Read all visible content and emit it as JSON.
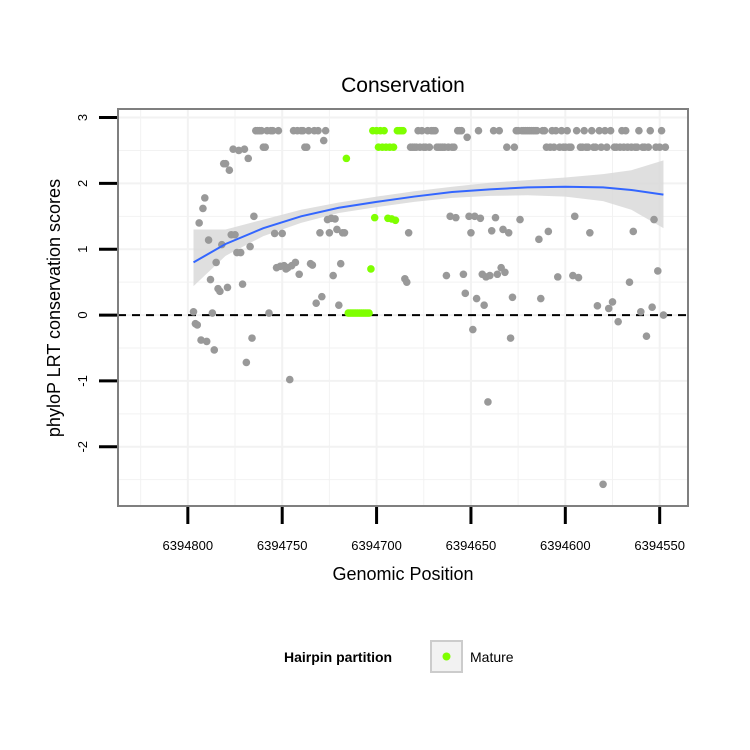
{
  "chart_data": {
    "type": "scatter",
    "title": "Conservation",
    "xlabel": "Genomic Position",
    "ylabel": "phyloP LRT conservation scores",
    "x_reversed": true,
    "xlim": [
      6394837,
      6394535
    ],
    "ylim": [
      -2.9,
      3.13
    ],
    "x_ticks": [
      6394800,
      6394750,
      6394700,
      6394650,
      6394600,
      6394550
    ],
    "y_ticks": [
      -2,
      -1,
      0,
      1,
      2,
      3
    ],
    "reference_line": {
      "y": 0,
      "style": "dashed"
    },
    "grid": true,
    "legend": {
      "title": "Hairpin partition",
      "position": "bottom",
      "entries": [
        "Mature"
      ]
    },
    "colors": {
      "other": "#999999",
      "mature": "#7fff00",
      "smooth": "#3366ff",
      "band": "#d9d9d9",
      "panel_border": "#7f7f7f"
    },
    "series": [
      {
        "name": "",
        "color": "#999999",
        "points": [
          [
            6394797,
            0.05
          ],
          [
            6394796,
            -0.13
          ],
          [
            6394795,
            -0.15
          ],
          [
            6394794,
            1.4
          ],
          [
            6394793,
            -0.38
          ],
          [
            6394792,
            1.62
          ],
          [
            6394791,
            1.78
          ],
          [
            6394790,
            -0.4
          ],
          [
            6394789,
            1.14
          ],
          [
            6394788,
            0.54
          ],
          [
            6394787,
            0.03
          ],
          [
            6394786,
            -0.53
          ],
          [
            6394785,
            0.8
          ],
          [
            6394784,
            0.4
          ],
          [
            6394783,
            0.36
          ],
          [
            6394782,
            1.07
          ],
          [
            6394781,
            2.3
          ],
          [
            6394780,
            2.3
          ],
          [
            6394779,
            0.42
          ],
          [
            6394778,
            2.2
          ],
          [
            6394777,
            1.22
          ],
          [
            6394776,
            2.52
          ],
          [
            6394775,
            1.22
          ],
          [
            6394774,
            0.95
          ],
          [
            6394773,
            2.5
          ],
          [
            6394772,
            0.95
          ],
          [
            6394771,
            0.47
          ],
          [
            6394770,
            2.52
          ],
          [
            6394769,
            -0.72
          ],
          [
            6394768,
            2.38
          ],
          [
            6394767,
            1.04
          ],
          [
            6394766,
            -0.35
          ],
          [
            6394765,
            1.5
          ],
          [
            6394764,
            2.8
          ],
          [
            6394763,
            2.8
          ],
          [
            6394762,
            2.8
          ],
          [
            6394761,
            2.8
          ],
          [
            6394760,
            2.55
          ],
          [
            6394759,
            2.55
          ],
          [
            6394758,
            2.8
          ],
          [
            6394757,
            0.03
          ],
          [
            6394756,
            2.8
          ],
          [
            6394755,
            2.8
          ],
          [
            6394754,
            1.24
          ],
          [
            6394753,
            0.72
          ],
          [
            6394752,
            2.8
          ],
          [
            6394751,
            0.74
          ],
          [
            6394750,
            1.24
          ],
          [
            6394749,
            0.75
          ],
          [
            6394748,
            0.7
          ],
          [
            6394747,
            0.72
          ],
          [
            6394746,
            -0.98
          ],
          [
            6394745,
            0.75
          ],
          [
            6394744,
            2.8
          ],
          [
            6394743,
            0.8
          ],
          [
            6394742,
            2.8
          ],
          [
            6394741,
            0.62
          ],
          [
            6394740,
            2.8
          ],
          [
            6394739,
            2.8
          ],
          [
            6394738,
            2.55
          ],
          [
            6394737,
            2.55
          ],
          [
            6394736,
            2.8
          ],
          [
            6394735,
            0.78
          ],
          [
            6394734,
            0.76
          ],
          [
            6394733,
            2.8
          ],
          [
            6394732,
            0.18
          ],
          [
            6394731,
            2.8
          ],
          [
            6394730,
            1.25
          ],
          [
            6394729,
            0.28
          ],
          [
            6394728,
            2.65
          ],
          [
            6394727,
            2.8
          ],
          [
            6394726,
            1.45
          ],
          [
            6394725,
            1.25
          ],
          [
            6394724,
            1.47
          ],
          [
            6394723,
            0.6
          ],
          [
            6394722,
            1.46
          ],
          [
            6394721,
            1.3
          ],
          [
            6394720,
            0.15
          ],
          [
            6394719,
            0.78
          ],
          [
            6394718,
            1.25
          ],
          [
            6394717,
            1.25
          ],
          [
            6394685,
            0.55
          ],
          [
            6394684,
            0.5
          ],
          [
            6394683,
            1.25
          ],
          [
            6394682,
            2.55
          ],
          [
            6394681,
            2.55
          ],
          [
            6394680,
            2.55
          ],
          [
            6394679,
            2.55
          ],
          [
            6394678,
            2.8
          ],
          [
            6394677,
            2.55
          ],
          [
            6394676,
            2.8
          ],
          [
            6394675,
            2.55
          ],
          [
            6394674,
            2.55
          ],
          [
            6394673,
            2.8
          ],
          [
            6394672,
            2.55
          ],
          [
            6394671,
            2.8
          ],
          [
            6394670,
            2.8
          ],
          [
            6394669,
            2.8
          ],
          [
            6394668,
            2.55
          ],
          [
            6394667,
            2.55
          ],
          [
            6394666,
            2.55
          ],
          [
            6394665,
            2.55
          ],
          [
            6394664,
            2.55
          ],
          [
            6394663,
            0.6
          ],
          [
            6394662,
            2.55
          ],
          [
            6394661,
            1.5
          ],
          [
            6394660,
            2.55
          ],
          [
            6394659,
            2.55
          ],
          [
            6394658,
            1.48
          ],
          [
            6394657,
            2.8
          ],
          [
            6394656,
            2.8
          ],
          [
            6394655,
            2.8
          ],
          [
            6394654,
            0.62
          ],
          [
            6394653,
            0.33
          ],
          [
            6394652,
            2.7
          ],
          [
            6394651,
            1.5
          ],
          [
            6394650,
            1.25
          ],
          [
            6394649,
            -0.22
          ],
          [
            6394648,
            1.5
          ],
          [
            6394647,
            0.25
          ],
          [
            6394646,
            2.8
          ],
          [
            6394645,
            1.47
          ],
          [
            6394644,
            0.62
          ],
          [
            6394643,
            0.15
          ],
          [
            6394642,
            0.58
          ],
          [
            6394641,
            -1.32
          ],
          [
            6394640,
            0.6
          ],
          [
            6394639,
            1.28
          ],
          [
            6394638,
            2.8
          ],
          [
            6394637,
            1.48
          ],
          [
            6394636,
            0.62
          ],
          [
            6394635,
            2.8
          ],
          [
            6394634,
            0.72
          ],
          [
            6394633,
            1.3
          ],
          [
            6394632,
            0.65
          ],
          [
            6394631,
            2.55
          ],
          [
            6394630,
            1.25
          ],
          [
            6394629,
            -0.35
          ],
          [
            6394628,
            0.27
          ],
          [
            6394627,
            2.55
          ],
          [
            6394626,
            2.8
          ],
          [
            6394625,
            2.8
          ],
          [
            6394624,
            1.45
          ],
          [
            6394623,
            2.8
          ],
          [
            6394622,
            2.8
          ],
          [
            6394621,
            2.8
          ],
          [
            6394620,
            2.8
          ],
          [
            6394619,
            2.8
          ],
          [
            6394618,
            2.8
          ],
          [
            6394617,
            2.8
          ],
          [
            6394616,
            2.8
          ],
          [
            6394615,
            2.8
          ],
          [
            6394614,
            1.15
          ],
          [
            6394613,
            0.25
          ],
          [
            6394612,
            2.8
          ],
          [
            6394611,
            2.8
          ],
          [
            6394610,
            2.55
          ],
          [
            6394609,
            1.27
          ],
          [
            6394608,
            2.55
          ],
          [
            6394607,
            2.8
          ],
          [
            6394606,
            2.55
          ],
          [
            6394605,
            2.8
          ],
          [
            6394604,
            0.58
          ],
          [
            6394603,
            2.55
          ],
          [
            6394602,
            2.8
          ],
          [
            6394601,
            2.55
          ],
          [
            6394600,
            2.55
          ],
          [
            6394599,
            2.8
          ],
          [
            6394598,
            2.55
          ],
          [
            6394597,
            2.55
          ],
          [
            6394596,
            0.6
          ],
          [
            6394595,
            1.5
          ],
          [
            6394594,
            2.8
          ],
          [
            6394593,
            0.57
          ],
          [
            6394592,
            2.55
          ],
          [
            6394591,
            2.55
          ],
          [
            6394590,
            2.8
          ],
          [
            6394589,
            2.55
          ],
          [
            6394588,
            2.55
          ],
          [
            6394587,
            1.25
          ],
          [
            6394586,
            2.8
          ],
          [
            6394585,
            2.55
          ],
          [
            6394584,
            2.55
          ],
          [
            6394583,
            0.14
          ],
          [
            6394582,
            2.8
          ],
          [
            6394581,
            2.55
          ],
          [
            6394580,
            -2.57
          ],
          [
            6394579,
            2.8
          ],
          [
            6394578,
            2.55
          ],
          [
            6394577,
            0.1
          ],
          [
            6394576,
            2.8
          ],
          [
            6394575,
            0.2
          ],
          [
            6394574,
            2.55
          ],
          [
            6394573,
            2.55
          ],
          [
            6394572,
            -0.1
          ],
          [
            6394571,
            2.55
          ],
          [
            6394570,
            2.8
          ],
          [
            6394569,
            2.55
          ],
          [
            6394568,
            2.8
          ],
          [
            6394567,
            2.55
          ],
          [
            6394566,
            0.5
          ],
          [
            6394565,
            2.55
          ],
          [
            6394564,
            1.27
          ],
          [
            6394563,
            2.55
          ],
          [
            6394562,
            2.55
          ],
          [
            6394561,
            2.8
          ],
          [
            6394560,
            0.05
          ],
          [
            6394559,
            2.55
          ],
          [
            6394558,
            2.55
          ],
          [
            6394557,
            -0.32
          ],
          [
            6394556,
            2.55
          ],
          [
            6394555,
            2.8
          ],
          [
            6394554,
            0.12
          ],
          [
            6394553,
            1.45
          ],
          [
            6394552,
            2.55
          ],
          [
            6394551,
            0.67
          ],
          [
            6394550,
            2.55
          ],
          [
            6394549,
            2.8
          ],
          [
            6394548,
            0.0
          ],
          [
            6394547,
            2.55
          ]
        ]
      },
      {
        "name": "Mature",
        "color": "#7fff00",
        "points": [
          [
            6394716,
            2.38
          ],
          [
            6394715,
            0.03
          ],
          [
            6394714,
            0.03
          ],
          [
            6394713,
            0.03
          ],
          [
            6394712,
            0.03
          ],
          [
            6394711,
            0.03
          ],
          [
            6394710,
            0.03
          ],
          [
            6394709,
            0.03
          ],
          [
            6394708,
            0.03
          ],
          [
            6394707,
            0.03
          ],
          [
            6394706,
            0.03
          ],
          [
            6394705,
            0.03
          ],
          [
            6394704,
            0.03
          ],
          [
            6394703,
            0.7
          ],
          [
            6394702,
            2.8
          ],
          [
            6394701,
            1.48
          ],
          [
            6394700,
            2.8
          ],
          [
            6394699,
            2.55
          ],
          [
            6394698,
            2.8
          ],
          [
            6394697,
            2.55
          ],
          [
            6394696,
            2.8
          ],
          [
            6394695,
            2.55
          ],
          [
            6394694,
            1.47
          ],
          [
            6394693,
            2.55
          ],
          [
            6394692,
            1.46
          ],
          [
            6394691,
            2.55
          ],
          [
            6394690,
            1.44
          ],
          [
            6394689,
            2.8
          ],
          [
            6394688,
            2.8
          ],
          [
            6394687,
            2.8
          ],
          [
            6394686,
            2.8
          ]
        ]
      }
    ],
    "smooth_fit": {
      "x": [
        6394797,
        6394780,
        6394760,
        6394740,
        6394720,
        6394700,
        6394680,
        6394660,
        6394640,
        6394620,
        6394600,
        6394580,
        6394565,
        6394548
      ],
      "y": [
        0.8,
        1.08,
        1.32,
        1.5,
        1.63,
        1.72,
        1.8,
        1.87,
        1.91,
        1.94,
        1.95,
        1.94,
        1.9,
        1.83
      ],
      "lower": [
        0.44,
        0.9,
        1.2,
        1.4,
        1.55,
        1.64,
        1.72,
        1.78,
        1.81,
        1.82,
        1.8,
        1.73,
        1.6,
        1.32
      ],
      "upper": [
        1.3,
        1.3,
        1.45,
        1.6,
        1.71,
        1.8,
        1.88,
        1.95,
        2.01,
        2.05,
        2.09,
        2.14,
        2.2,
        2.35
      ]
    }
  }
}
